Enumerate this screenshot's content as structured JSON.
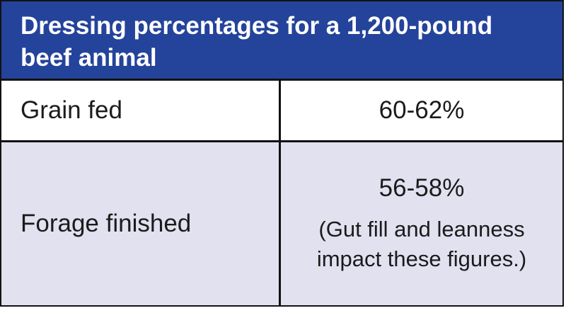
{
  "colors": {
    "header_bg": "#24439b",
    "header_text": "#ffffff",
    "row1_bg": "#ffffff",
    "row2_bg": "#e1e1f0",
    "border": "#121212",
    "body_text": "#1b1b1b"
  },
  "chart_data": {
    "type": "table",
    "title": "Dressing percentages for a 1,200-pound beef animal",
    "title_lines": [
      "Dressing percentages for a 1,200-pound",
      "beef animal"
    ],
    "rows": [
      {
        "label": "Grain fed",
        "value": "60-62%",
        "note": ""
      },
      {
        "label": "Forage finished",
        "value": "56-58%",
        "note": "(Gut fill and leanness impact these figures.)"
      }
    ],
    "layout": {
      "columns": 2,
      "header_style": "title-bar",
      "grid": "black rules between rows and columns"
    }
  }
}
